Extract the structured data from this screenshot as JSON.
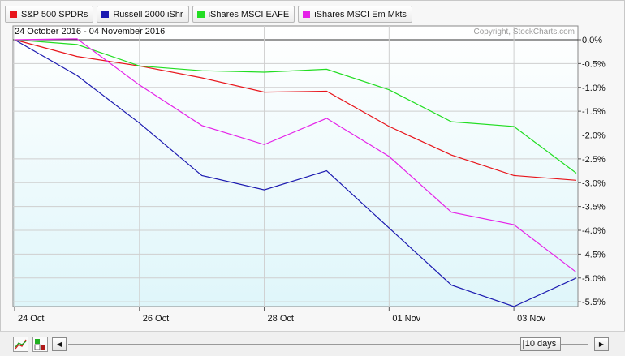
{
  "legend": [
    {
      "label": "S&P 500 SPDRs",
      "color": "#e8151b"
    },
    {
      "label": "Russell 2000 iShr",
      "color": "#1c1ab0"
    },
    {
      "label": "iShares MSCI EAFE",
      "color": "#22dd22"
    },
    {
      "label": "iShares MSCI Em Mkts",
      "color": "#e522e8"
    }
  ],
  "header": {
    "date_range": "24 October 2016 - 04 November 2016",
    "copyright": "Copyright, StockCharts.com"
  },
  "controls": {
    "range_label": "10 days",
    "scroll_left_symbol": "◀",
    "scroll_right_symbol": "▶",
    "chart_style_icon": "line-chart-icon",
    "chart_type_icon": "color-boxes-icon"
  },
  "chart_data": {
    "type": "line",
    "x": [
      "24 Oct",
      "25 Oct",
      "26 Oct",
      "27 Oct",
      "28 Oct",
      "31 Oct",
      "01 Nov",
      "02 Nov",
      "03 Nov",
      "04 Nov"
    ],
    "x_tick_labels": [
      "24 Oct",
      "26 Oct",
      "28 Oct",
      "01 Nov",
      "03 Nov"
    ],
    "ylim": [
      -5.6,
      0.0
    ],
    "y_tick_values": [
      0.0,
      -0.5,
      -1.0,
      -1.5,
      -2.0,
      -2.5,
      -3.0,
      -3.5,
      -4.0,
      -4.5,
      -5.0,
      -5.5
    ],
    "y_tick_labels": [
      "0.0%",
      "-0.5%",
      "-1.0%",
      "-1.5%",
      "-2.0%",
      "-2.5%",
      "-3.0%",
      "-3.5%",
      "-4.0%",
      "-4.5%",
      "-5.0%",
      "-5.5%"
    ],
    "y_axis_side": "right",
    "series": [
      {
        "name": "S&P 500 SPDRs",
        "color": "#e8151b",
        "values": [
          0.0,
          -0.35,
          -0.55,
          -0.8,
          -1.1,
          -1.08,
          -1.82,
          -2.42,
          -2.85,
          -2.95
        ]
      },
      {
        "name": "Russell 2000 iShr",
        "color": "#1c1ab0",
        "values": [
          0.0,
          -0.75,
          -1.75,
          -2.85,
          -3.15,
          -2.75,
          -3.95,
          -5.15,
          -5.6,
          -5.0
        ]
      },
      {
        "name": "iShares MSCI EAFE",
        "color": "#22dd22",
        "values": [
          0.0,
          -0.1,
          -0.55,
          -0.65,
          -0.68,
          -0.62,
          -1.05,
          -1.72,
          -1.82,
          -2.8
        ]
      },
      {
        "name": "iShares MSCI Em Mkts",
        "color": "#e522e8",
        "values": [
          0.0,
          0.02,
          -0.95,
          -1.8,
          -2.2,
          -1.65,
          -2.45,
          -3.62,
          -3.88,
          -4.88
        ]
      }
    ]
  }
}
